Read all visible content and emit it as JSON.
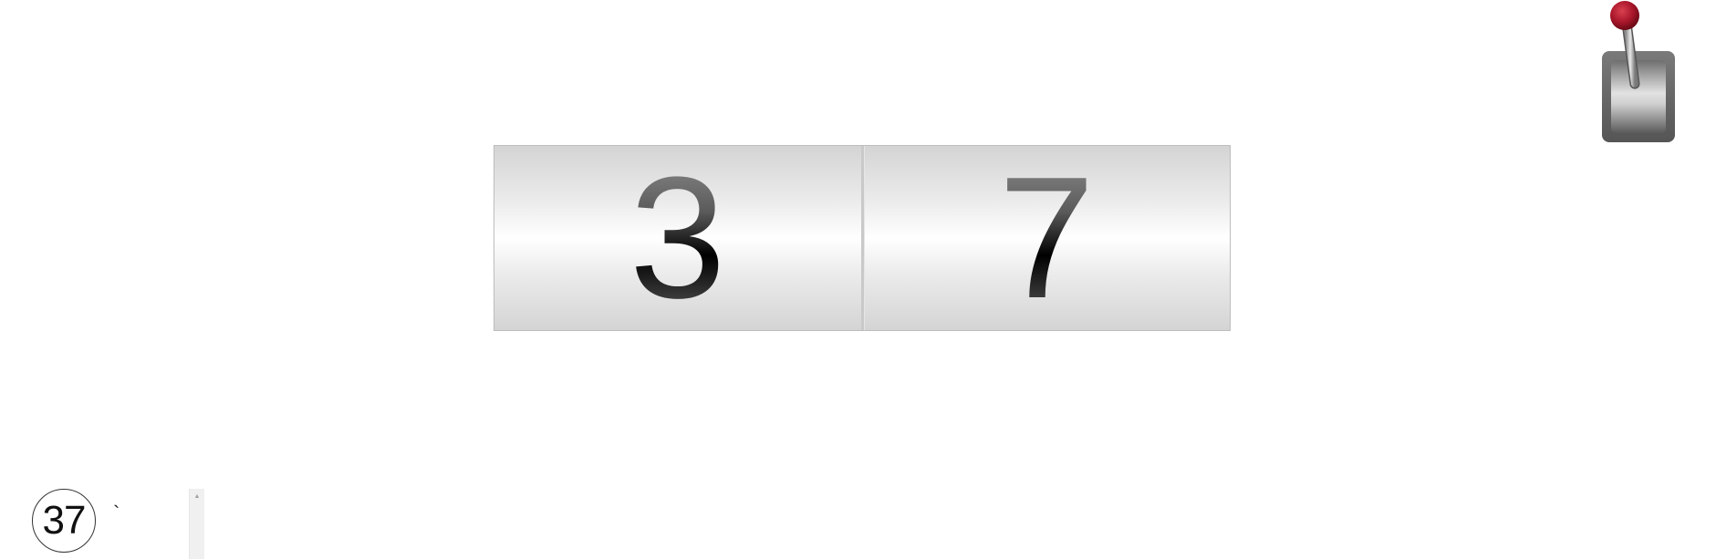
{
  "reels": {
    "left_digit": "3",
    "right_digit": "7"
  },
  "lever": {
    "icon": "slot-lever-icon",
    "knob_color": "#b0182b",
    "base_color": "#666666"
  },
  "score": {
    "value": "37"
  },
  "tick": {
    "text": "`"
  },
  "scrollbar": {
    "up_glyph": "▲"
  }
}
